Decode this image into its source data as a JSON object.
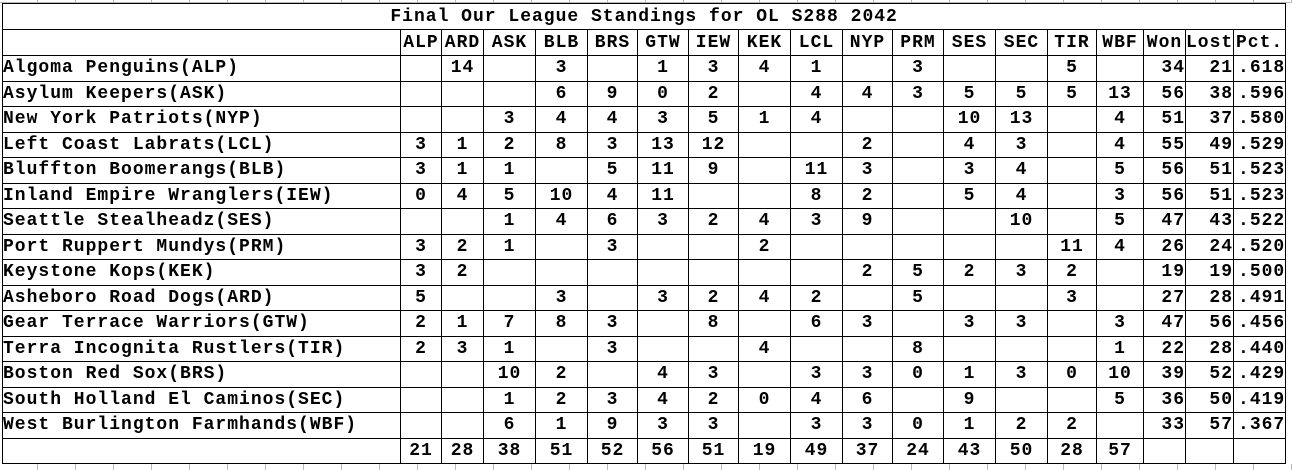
{
  "title": "Final Our League Standings for OL S288 2042",
  "table": {
    "corner_label": "",
    "columns": [
      "ALP",
      "ARD",
      "ASK",
      "BLB",
      "BRS",
      "GTW",
      "IEW",
      "KEK",
      "LCL",
      "NYP",
      "PRM",
      "SES",
      "SEC",
      "TIR",
      "WBF",
      "Won",
      "Lost",
      "Pct."
    ],
    "rows": [
      {
        "team": "Algoma Penguins(ALP)",
        "cells": [
          "",
          "14",
          "",
          "3",
          "",
          "1",
          "3",
          "4",
          "1",
          "",
          "3",
          "",
          "",
          "5",
          "",
          "34",
          "21",
          ".618"
        ]
      },
      {
        "team": "Asylum Keepers(ASK)",
        "cells": [
          "",
          "",
          "",
          "6",
          "9",
          "0",
          "2",
          "",
          "4",
          "4",
          "3",
          "5",
          "5",
          "5",
          "13",
          "56",
          "38",
          ".596"
        ]
      },
      {
        "team": "New York Patriots(NYP)",
        "cells": [
          "",
          "",
          "3",
          "4",
          "4",
          "3",
          "5",
          "1",
          "4",
          "",
          "",
          "10",
          "13",
          "",
          "4",
          "51",
          "37",
          ".580"
        ]
      },
      {
        "team": "Left Coast Labrats(LCL)",
        "cells": [
          "3",
          "1",
          "2",
          "8",
          "3",
          "13",
          "12",
          "",
          "",
          "2",
          "",
          "4",
          "3",
          "",
          "4",
          "55",
          "49",
          ".529"
        ]
      },
      {
        "team": "Bluffton Boomerangs(BLB)",
        "cells": [
          "3",
          "1",
          "1",
          "",
          "5",
          "11",
          "9",
          "",
          "11",
          "3",
          "",
          "3",
          "4",
          "",
          "5",
          "56",
          "51",
          ".523"
        ]
      },
      {
        "team": "Inland Empire Wranglers(IEW)",
        "cells": [
          "0",
          "4",
          "5",
          "10",
          "4",
          "11",
          "",
          "",
          "8",
          "2",
          "",
          "5",
          "4",
          "",
          "3",
          "56",
          "51",
          ".523"
        ]
      },
      {
        "team": "Seattle Stealheadz(SES)",
        "cells": [
          "",
          "",
          "1",
          "4",
          "6",
          "3",
          "2",
          "4",
          "3",
          "9",
          "",
          "",
          "10",
          "",
          "5",
          "47",
          "43",
          ".522"
        ]
      },
      {
        "team": "Port Ruppert Mundys(PRM)",
        "cells": [
          "3",
          "2",
          "1",
          "",
          "3",
          "",
          "",
          "2",
          "",
          "",
          "",
          "",
          "",
          "11",
          "4",
          "26",
          "24",
          ".520"
        ]
      },
      {
        "team": "Keystone Kops(KEK)",
        "cells": [
          "3",
          "2",
          "",
          "",
          "",
          "",
          "",
          "",
          "",
          "2",
          "5",
          "2",
          "3",
          "2",
          "",
          "19",
          "19",
          ".500"
        ]
      },
      {
        "team": "Asheboro Road Dogs(ARD)",
        "cells": [
          "5",
          "",
          "",
          "3",
          "",
          "3",
          "2",
          "4",
          "2",
          "",
          "5",
          "",
          "",
          "3",
          "",
          "27",
          "28",
          ".491"
        ]
      },
      {
        "team": "Gear Terrace Warriors(GTW)",
        "cells": [
          "2",
          "1",
          "7",
          "8",
          "3",
          "",
          "8",
          "",
          "6",
          "3",
          "",
          "3",
          "3",
          "",
          "3",
          "47",
          "56",
          ".456"
        ]
      },
      {
        "team": "Terra Incognita Rustlers(TIR)",
        "cells": [
          "2",
          "3",
          "1",
          "",
          "3",
          "",
          "",
          "4",
          "",
          "",
          "8",
          "",
          "",
          "",
          "1",
          "22",
          "28",
          ".440"
        ]
      },
      {
        "team": "Boston Red Sox(BRS)",
        "cells": [
          "",
          "",
          "10",
          "2",
          "",
          "4",
          "3",
          "",
          "3",
          "3",
          "0",
          "1",
          "3",
          "0",
          "10",
          "39",
          "52",
          ".429"
        ]
      },
      {
        "team": "South Holland El Caminos(SEC)",
        "cells": [
          "",
          "",
          "1",
          "2",
          "3",
          "4",
          "2",
          "0",
          "4",
          "6",
          "",
          "9",
          "",
          "",
          "5",
          "36",
          "50",
          ".419"
        ]
      },
      {
        "team": "West Burlington Farmhands(WBF)",
        "cells": [
          "",
          "",
          "6",
          "1",
          "9",
          "3",
          "3",
          "",
          "3",
          "3",
          "0",
          "1",
          "2",
          "2",
          "",
          "33",
          "57",
          ".367"
        ]
      },
      {
        "team": "",
        "cells": [
          "21",
          "28",
          "38",
          "51",
          "52",
          "56",
          "51",
          "19",
          "49",
          "37",
          "24",
          "43",
          "50",
          "28",
          "57",
          "",
          "",
          ""
        ]
      }
    ]
  },
  "colors": {
    "border": "#000000",
    "text": "#000000",
    "background": "#ffffff",
    "gridline": "#b8b8b8"
  }
}
